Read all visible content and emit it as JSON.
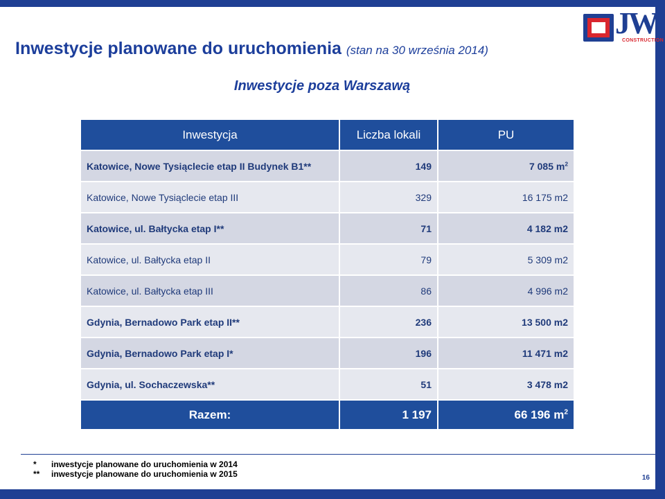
{
  "colors": {
    "navy": "#1f3f93",
    "header_blue": "#1f4e9c",
    "title_blue": "#1c3e9b",
    "row_light": "#d4d7e3",
    "row_lighter": "#e6e8ef",
    "text_dark_blue": "#1f3a7a",
    "logo_red": "#d9262e",
    "logo_gray": "#8a9bb8"
  },
  "logo": {
    "letters": "JW",
    "tagline": "CONSTRUCTION"
  },
  "title": {
    "main": "Inwestycje planowane do uruchomienia",
    "date_note": "(stan na 30 września 2014)"
  },
  "subtitle": "Inwestycje poza Warszawą",
  "table": {
    "headers": [
      "Inwestycja",
      "Liczba lokali",
      "PU"
    ],
    "rows": [
      {
        "name": "Katowice, Nowe Tysiąclecie etap II Budynek B1**",
        "units": "149",
        "pu": "7 085 m",
        "pu_sup": "2",
        "bold": true
      },
      {
        "name": "Katowice, Nowe Tysiąclecie etap III",
        "units": "329",
        "pu": "16 175 m2",
        "pu_sup": "",
        "bold": false
      },
      {
        "name": "Katowice, ul. Bałtycka etap I**",
        "units": "71",
        "pu": "4 182 m2",
        "pu_sup": "",
        "bold": true
      },
      {
        "name": "Katowice, ul. Bałtycka etap II",
        "units": "79",
        "pu": "5 309 m2",
        "pu_sup": "",
        "bold": false
      },
      {
        "name": "Katowice, ul. Bałtycka etap III",
        "units": "86",
        "pu": "4 996 m2",
        "pu_sup": "",
        "bold": false
      },
      {
        "name": "Gdynia, Bernadowo Park etap II**",
        "units": "236",
        "pu": "13 500 m2",
        "pu_sup": "",
        "bold": true
      },
      {
        "name": "Gdynia, Bernadowo Park etap I*",
        "units": "196",
        "pu": "11 471 m2",
        "pu_sup": "",
        "bold": true
      },
      {
        "name": "Gdynia, ul. Sochaczewska**",
        "units": "51",
        "pu": "3 478 m2",
        "pu_sup": "",
        "bold": true
      }
    ],
    "total": {
      "label": "Razem:",
      "units": "1 197",
      "pu": "66 196 m",
      "pu_sup": "2"
    }
  },
  "notes": [
    {
      "mark": "*",
      "text": "inwestycje planowane do uruchomienia w 2014"
    },
    {
      "mark": "**",
      "text": "inwestycje planowane do uruchomienia w 2015"
    }
  ],
  "page_number": "16"
}
